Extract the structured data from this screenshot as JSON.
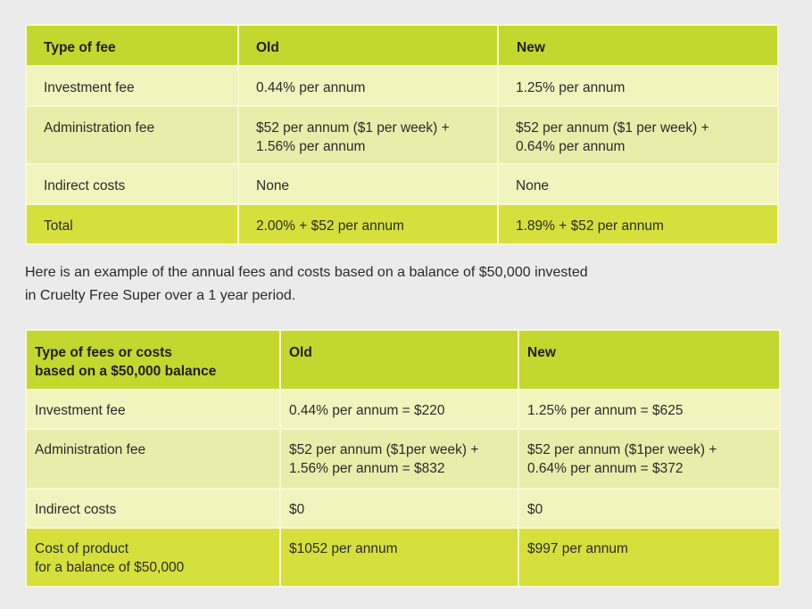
{
  "table_1": {
    "headers": [
      "Type of fee",
      "Old",
      "New"
    ],
    "rows": [
      [
        "Investment fee",
        "0.44% per annum",
        "1.25% per annum"
      ],
      [
        "Administration fee",
        [
          "$52 per annum ($1 per week) +",
          "1.56% per annum"
        ],
        [
          "$52 per annum ($1 per week)  +",
          "0.64% per annum"
        ]
      ],
      [
        "Indirect costs",
        "None",
        "None"
      ],
      [
        "Total",
        "2.00% + $52 per annum",
        "1.89% + $52 per annum"
      ]
    ]
  },
  "intro_text": {
    "line_1": "Here is an example of the annual fees and costs based on a balance of $50,000 invested",
    "line_2": "in Cruelty Free Super over a 1 year period."
  },
  "table_2": {
    "headers": [
      [
        "Type of fees or costs",
        "based on a $50,000 balance"
      ],
      "Old",
      "New"
    ],
    "rows": [
      [
        "Investment fee",
        "0.44% per annum = $220",
        "1.25% per annum = $625"
      ],
      [
        "Administration fee",
        [
          "$52 per annum ($1per week) +",
          "1.56% per annum = $832"
        ],
        [
          "$52 per annum ($1per week)  +",
          "0.64% per annum = $372"
        ]
      ],
      [
        "Indirect costs",
        "$0",
        "$0"
      ],
      [
        [
          "Cost of product",
          "for a balance of $50,000"
        ],
        "$1052 per annum",
        "$997 per annum"
      ]
    ]
  },
  "colors": {
    "page_background": "#ebebeb",
    "header_background": "#c4d72e",
    "row_light": "#f2f4be",
    "row_mid": "#eaedaa",
    "total_row": "#d5e03d"
  }
}
